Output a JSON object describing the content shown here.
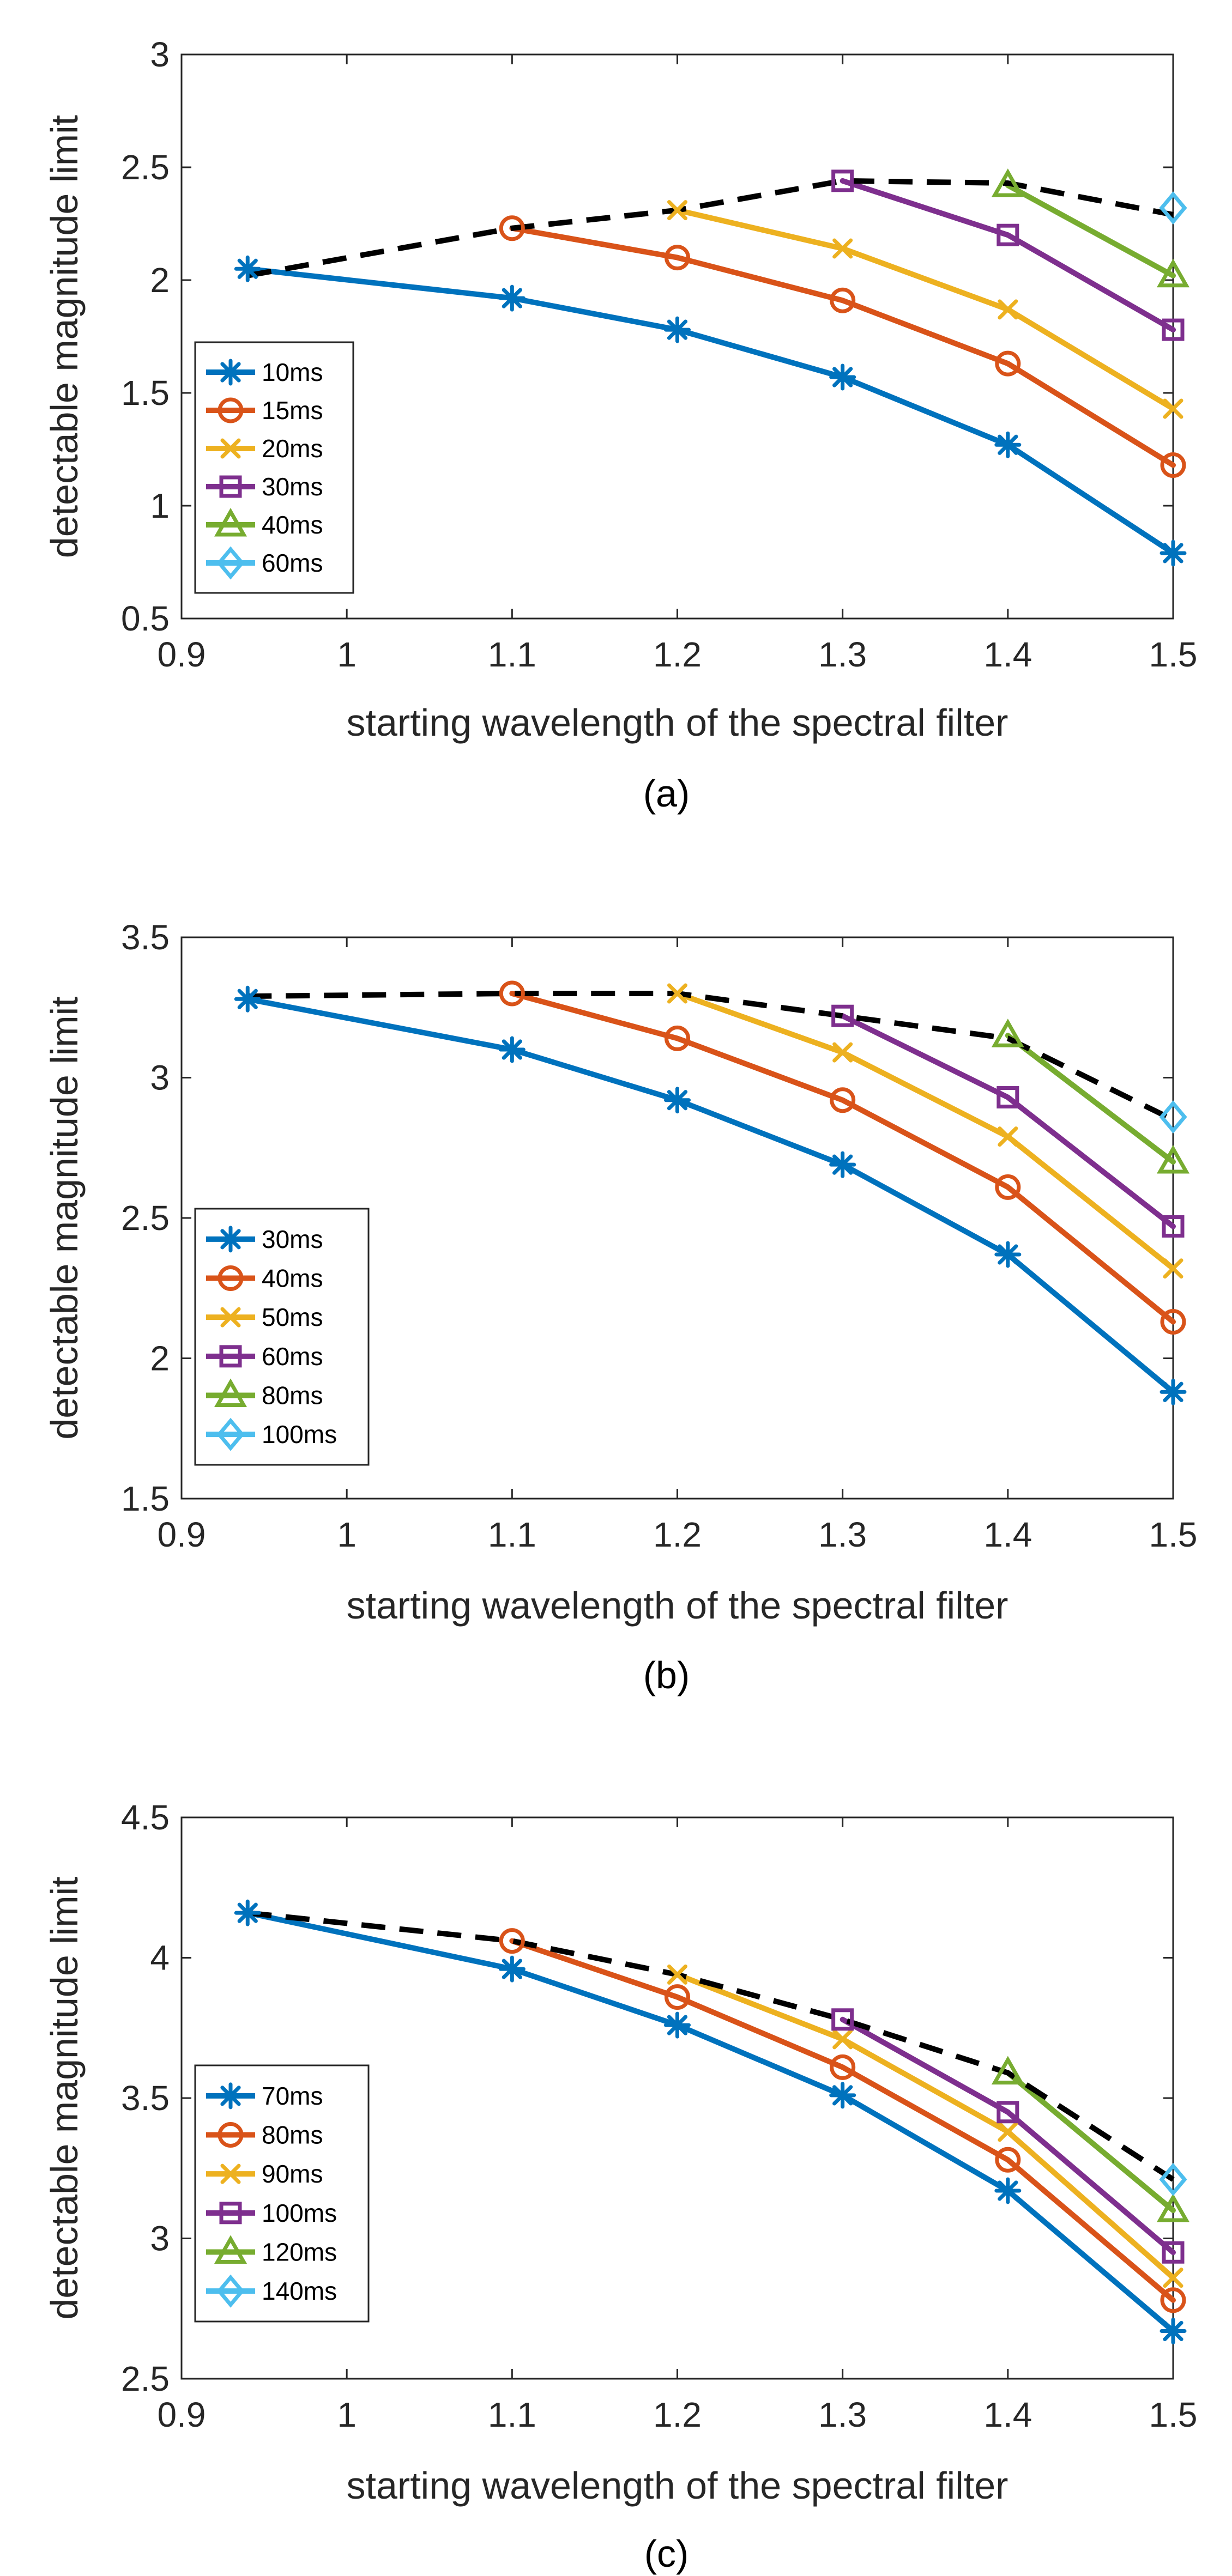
{
  "figure": {
    "panel_captions": [
      "(a)",
      "(b)",
      "(c)"
    ]
  },
  "colors": {
    "blue": "#0072BD",
    "orange": "#D95319",
    "yellow": "#EDB120",
    "purple": "#7E2F8E",
    "green": "#77AC30",
    "cyan": "#4DBEEE",
    "envelope": "#000000",
    "axis": "#262626"
  },
  "chart_data": [
    {
      "type": "line",
      "caption": "(a)",
      "xlabel": "starting wavelength of the spectral filter",
      "ylabel": "detectable magnitude limit",
      "xlim": [
        0.9,
        1.5
      ],
      "ylim": [
        0.5,
        3
      ],
      "xticks": [
        0.9,
        1,
        1.1,
        1.2,
        1.3,
        1.4,
        1.5
      ],
      "xtick_labels": [
        "0.9",
        "1",
        "1.1",
        "1.2",
        "1.3",
        "1.4",
        "1.5"
      ],
      "yticks": [
        0.5,
        1,
        1.5,
        2,
        2.5,
        3
      ],
      "ytick_labels": [
        "0.5",
        "1",
        "1.5",
        "2",
        "2.5",
        "3"
      ],
      "legend_position": "middle-left",
      "series": [
        {
          "name": "10ms",
          "marker": "asterisk",
          "color": "#0072BD",
          "x": [
            0.94,
            1.1,
            1.2,
            1.3,
            1.4,
            1.5
          ],
          "values": [
            2.05,
            1.92,
            1.78,
            1.57,
            1.27,
            0.79
          ]
        },
        {
          "name": "15ms",
          "marker": "circle",
          "color": "#D95319",
          "x": [
            1.1,
            1.2,
            1.3,
            1.4,
            1.5
          ],
          "values": [
            2.23,
            2.1,
            1.91,
            1.63,
            1.18
          ]
        },
        {
          "name": "20ms",
          "marker": "x",
          "color": "#EDB120",
          "x": [
            1.2,
            1.3,
            1.4,
            1.5
          ],
          "values": [
            2.31,
            2.14,
            1.87,
            1.43
          ]
        },
        {
          "name": "30ms",
          "marker": "square",
          "color": "#7E2F8E",
          "x": [
            1.3,
            1.4,
            1.5
          ],
          "values": [
            2.44,
            2.2,
            1.78
          ]
        },
        {
          "name": "40ms",
          "marker": "triangle",
          "color": "#77AC30",
          "x": [
            1.4,
            1.5
          ],
          "values": [
            2.42,
            2.02
          ]
        },
        {
          "name": "60ms",
          "marker": "diamond",
          "color": "#4DBEEE",
          "x": [
            1.5
          ],
          "values": [
            2.32
          ]
        }
      ],
      "envelope": {
        "x": [
          0.94,
          1.1,
          1.2,
          1.3,
          1.4,
          1.5
        ],
        "values": [
          2.02,
          2.23,
          2.31,
          2.44,
          2.43,
          2.29
        ]
      }
    },
    {
      "type": "line",
      "caption": "(b)",
      "xlabel": "starting wavelength of the spectral filter",
      "ylabel": "detectable magnitude limit",
      "xlim": [
        0.9,
        1.5
      ],
      "ylim": [
        1.5,
        3.5
      ],
      "xticks": [
        0.9,
        1,
        1.1,
        1.2,
        1.3,
        1.4,
        1.5
      ],
      "xtick_labels": [
        "0.9",
        "1",
        "1.1",
        "1.2",
        "1.3",
        "1.4",
        "1.5"
      ],
      "yticks": [
        1.5,
        2,
        2.5,
        3,
        3.5
      ],
      "ytick_labels": [
        "1.5",
        "2",
        "2.5",
        "3",
        "3.5"
      ],
      "legend_position": "bottom-left",
      "series": [
        {
          "name": "30ms",
          "marker": "asterisk",
          "color": "#0072BD",
          "x": [
            0.94,
            1.1,
            1.2,
            1.3,
            1.4,
            1.5
          ],
          "values": [
            3.28,
            3.1,
            2.92,
            2.69,
            2.37,
            1.88
          ]
        },
        {
          "name": "40ms",
          "marker": "circle",
          "color": "#D95319",
          "x": [
            1.1,
            1.2,
            1.3,
            1.4,
            1.5
          ],
          "values": [
            3.3,
            3.14,
            2.92,
            2.61,
            2.13
          ]
        },
        {
          "name": "50ms",
          "marker": "x",
          "color": "#EDB120",
          "x": [
            1.2,
            1.3,
            1.4,
            1.5
          ],
          "values": [
            3.3,
            3.09,
            2.79,
            2.32
          ]
        },
        {
          "name": "60ms",
          "marker": "square",
          "color": "#7E2F8E",
          "x": [
            1.3,
            1.4,
            1.5
          ],
          "values": [
            3.22,
            2.93,
            2.47
          ]
        },
        {
          "name": "80ms",
          "marker": "triangle",
          "color": "#77AC30",
          "x": [
            1.4,
            1.5
          ],
          "values": [
            3.15,
            2.7
          ]
        },
        {
          "name": "100ms",
          "marker": "diamond",
          "color": "#4DBEEE",
          "x": [
            1.5
          ],
          "values": [
            2.86
          ]
        }
      ],
      "envelope": {
        "x": [
          0.94,
          1.1,
          1.2,
          1.3,
          1.4,
          1.5
        ],
        "values": [
          3.29,
          3.3,
          3.3,
          3.22,
          3.14,
          2.85
        ]
      }
    },
    {
      "type": "line",
      "caption": "(c)",
      "xlabel": "starting wavelength of the spectral filter",
      "ylabel": "detectable magnitude limit",
      "xlim": [
        0.9,
        1.5
      ],
      "ylim": [
        2.5,
        4.5
      ],
      "xticks": [
        0.9,
        1,
        1.1,
        1.2,
        1.3,
        1.4,
        1.5
      ],
      "xtick_labels": [
        "0.9",
        "1",
        "1.1",
        "1.2",
        "1.3",
        "1.4",
        "1.5"
      ],
      "yticks": [
        2.5,
        3,
        3.5,
        4,
        4.5
      ],
      "ytick_labels": [
        "2.5",
        "3",
        "3.5",
        "4",
        "4.5"
      ],
      "legend_position": "bottom-left",
      "series": [
        {
          "name": "70ms",
          "marker": "asterisk",
          "color": "#0072BD",
          "x": [
            0.94,
            1.1,
            1.2,
            1.3,
            1.4,
            1.5
          ],
          "values": [
            4.16,
            3.96,
            3.76,
            3.51,
            3.17,
            2.67
          ]
        },
        {
          "name": "80ms",
          "marker": "circle",
          "color": "#D95319",
          "x": [
            1.1,
            1.2,
            1.3,
            1.4,
            1.5
          ],
          "values": [
            4.06,
            3.86,
            3.61,
            3.28,
            2.78
          ]
        },
        {
          "name": "90ms",
          "marker": "x",
          "color": "#EDB120",
          "x": [
            1.2,
            1.3,
            1.4,
            1.5
          ],
          "values": [
            3.94,
            3.71,
            3.38,
            2.86
          ]
        },
        {
          "name": "100ms",
          "marker": "square",
          "color": "#7E2F8E",
          "x": [
            1.3,
            1.4,
            1.5
          ],
          "values": [
            3.78,
            3.45,
            2.95
          ]
        },
        {
          "name": "120ms",
          "marker": "triangle",
          "color": "#77AC30",
          "x": [
            1.4,
            1.5
          ],
          "values": [
            3.59,
            3.1
          ]
        },
        {
          "name": "140ms",
          "marker": "diamond",
          "color": "#4DBEEE",
          "x": [
            1.5
          ],
          "values": [
            3.21
          ]
        }
      ],
      "envelope": {
        "x": [
          0.94,
          1.1,
          1.2,
          1.3,
          1.4,
          1.5
        ],
        "values": [
          4.16,
          4.06,
          3.94,
          3.78,
          3.59,
          3.21
        ]
      }
    }
  ]
}
